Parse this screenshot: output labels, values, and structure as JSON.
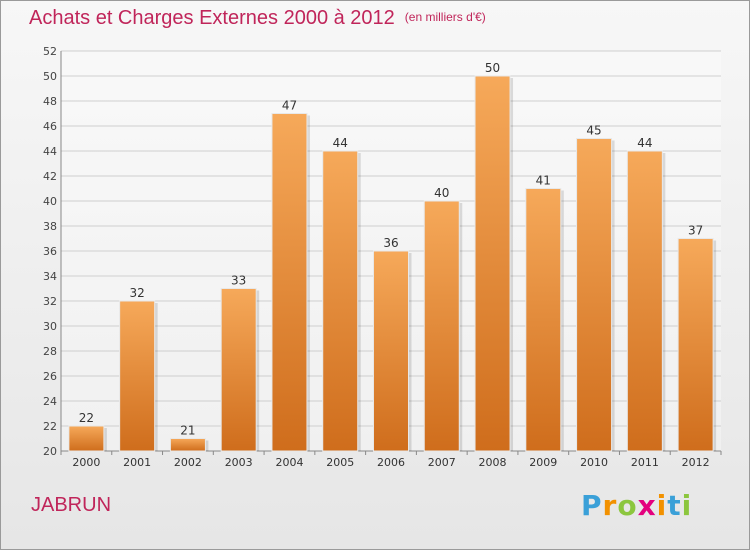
{
  "chart_data": {
    "type": "bar",
    "title": "Achats et Charges Externes 2000 à 2012",
    "subtitle": "(en milliers d'€)",
    "categories": [
      "2000",
      "2001",
      "2002",
      "2003",
      "2004",
      "2005",
      "2006",
      "2007",
      "2008",
      "2009",
      "2010",
      "2011",
      "2012"
    ],
    "values": [
      22,
      32,
      21,
      33,
      47,
      44,
      36,
      40,
      50,
      41,
      45,
      44,
      37
    ],
    "ylim": [
      20,
      52
    ],
    "yticks": [
      20,
      22,
      24,
      26,
      28,
      30,
      32,
      34,
      36,
      38,
      40,
      42,
      44,
      46,
      48,
      50,
      52
    ],
    "grid": true,
    "legend": "none",
    "bar_color_top": "#f6a95a",
    "bar_color_bottom": "#cf6d1c"
  },
  "commune": "JABRUN",
  "logo": {
    "letters": [
      "P",
      "r",
      "o",
      "x",
      "i",
      "t",
      "i"
    ],
    "colors": [
      "#3aa0d8",
      "#f29100",
      "#8cc63e",
      "#e3007e",
      "#f29100",
      "#3aa0d8",
      "#8cc63e"
    ]
  }
}
